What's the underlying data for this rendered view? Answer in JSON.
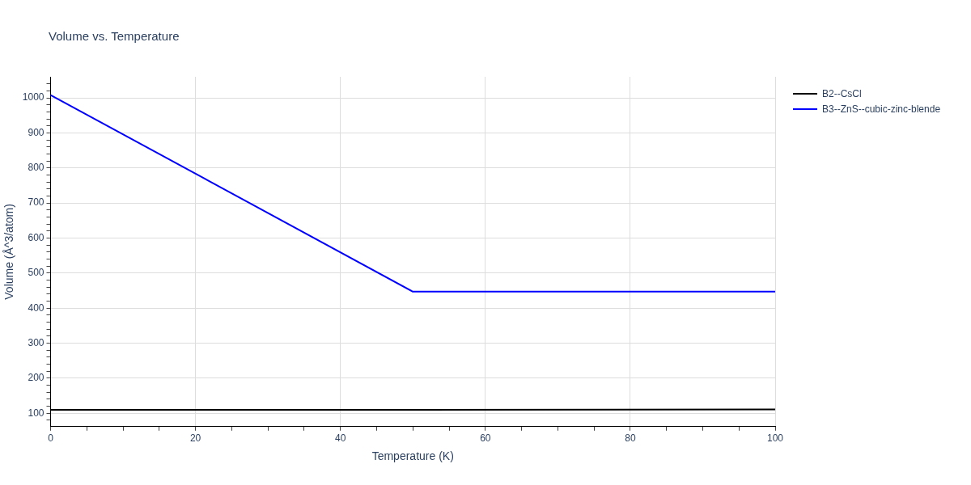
{
  "chart_data": {
    "type": "line",
    "title": "Volume vs. Temperature",
    "xlabel": "Temperature (K)",
    "ylabel": "Volume (Å^3/atom)",
    "x": [
      0,
      50,
      100
    ],
    "series": [
      {
        "name": "B2--CsCl",
        "color": "#000000",
        "values": [
          110,
          110,
          111
        ]
      },
      {
        "name": "B3--ZnS--cubic-zinc-blende",
        "color": "#0000ff",
        "values": [
          1008,
          447,
          447
        ]
      }
    ],
    "xlim": [
      0,
      100
    ],
    "xticks": [
      0,
      {
        "value": 5,
        "label": null
      },
      {
        "value": 10,
        "label": null
      },
      {
        "value": 15,
        "label": null
      },
      20,
      {
        "value": 25,
        "label": null
      },
      {
        "value": 30,
        "label": null
      },
      {
        "value": 35,
        "label": null
      },
      40,
      {
        "value": 45,
        "label": null
      },
      {
        "value": 50,
        "label": null
      },
      {
        "value": 55,
        "label": null
      },
      60,
      {
        "value": 65,
        "label": null
      },
      {
        "value": 70,
        "label": null
      },
      {
        "value": 75,
        "label": null
      },
      80,
      {
        "value": 85,
        "label": null
      },
      {
        "value": 90,
        "label": null
      },
      {
        "value": 95,
        "label": null
      },
      100
    ],
    "ylim": [
      62,
      1060
    ],
    "yticks": [
      {
        "value": 80,
        "label": null
      },
      100,
      {
        "value": 120,
        "label": null
      },
      {
        "value": 140,
        "label": null
      },
      {
        "value": 160,
        "label": null
      },
      {
        "value": 180,
        "label": null
      },
      200,
      {
        "value": 220,
        "label": null
      },
      {
        "value": 240,
        "label": null
      },
      {
        "value": 260,
        "label": null
      },
      {
        "value": 280,
        "label": null
      },
      300,
      {
        "value": 320,
        "label": null
      },
      {
        "value": 340,
        "label": null
      },
      {
        "value": 360,
        "label": null
      },
      {
        "value": 380,
        "label": null
      },
      400,
      {
        "value": 420,
        "label": null
      },
      {
        "value": 440,
        "label": null
      },
      {
        "value": 460,
        "label": null
      },
      {
        "value": 480,
        "label": null
      },
      500,
      {
        "value": 520,
        "label": null
      },
      {
        "value": 540,
        "label": null
      },
      {
        "value": 560,
        "label": null
      },
      {
        "value": 580,
        "label": null
      },
      600,
      {
        "value": 620,
        "label": null
      },
      {
        "value": 640,
        "label": null
      },
      {
        "value": 660,
        "label": null
      },
      {
        "value": 680,
        "label": null
      },
      700,
      {
        "value": 720,
        "label": null
      },
      {
        "value": 740,
        "label": null
      },
      {
        "value": 760,
        "label": null
      },
      {
        "value": 780,
        "label": null
      },
      800,
      {
        "value": 820,
        "label": null
      },
      {
        "value": 840,
        "label": null
      },
      {
        "value": 860,
        "label": null
      },
      {
        "value": 880,
        "label": null
      },
      900,
      {
        "value": 920,
        "label": null
      },
      {
        "value": 940,
        "label": null
      },
      {
        "value": 960,
        "label": null
      },
      {
        "value": 980,
        "label": null
      },
      1000,
      {
        "value": 1020,
        "label": null
      },
      {
        "value": 1040,
        "label": null
      }
    ],
    "grid": true,
    "legend": "top right",
    "marker": "none",
    "line_style": "solid"
  }
}
